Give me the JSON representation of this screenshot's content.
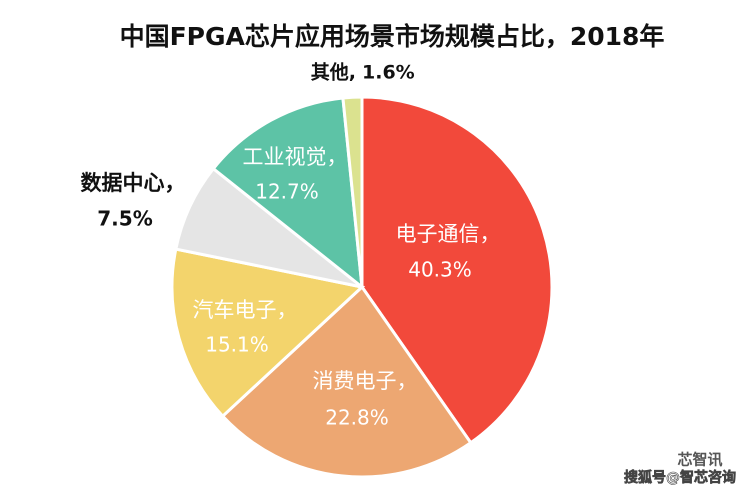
{
  "chart_data": {
    "type": "pie",
    "title": "中国FPGA芯片应用场景市场规模占比，2018年",
    "categories": [
      "电子通信，",
      "消费电子，",
      "汽车电子，",
      "数据中心，",
      "工业视觉，",
      "其他,"
    ],
    "values": [
      40.3,
      22.8,
      15.1,
      7.5,
      12.7,
      1.6
    ],
    "value_labels": [
      "40.3%",
      "22.8%",
      "15.1%",
      "7.5%",
      "12.7%",
      "1.6%"
    ],
    "colors": [
      "#f2493b",
      "#eda772",
      "#f3d46c",
      "#e5e5e5",
      "#5dc3a6",
      "#dbe28f"
    ]
  },
  "watermark": {
    "brand": "芯智讯",
    "source": "搜狐号@智芯咨询"
  }
}
